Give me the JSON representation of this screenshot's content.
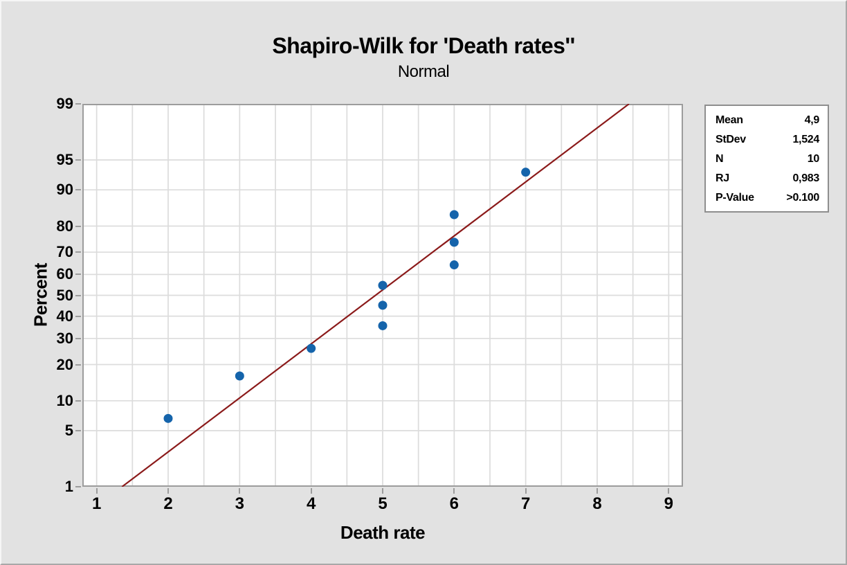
{
  "window": {
    "background": "#E2E2E2"
  },
  "chart_data": {
    "type": "scatter",
    "subtype": "normal-probability-plot",
    "title": "Shapiro-Wilk for 'Death rates''",
    "subtitle": "Normal",
    "xlabel": "Death rate",
    "ylabel": "Percent",
    "x_ticks": [
      1,
      2,
      3,
      4,
      5,
      6,
      7,
      8,
      9
    ],
    "x_gridline_step": 0.5,
    "x_axis_range": [
      0.8,
      9.2
    ],
    "y_ticks": [
      99,
      95,
      90,
      80,
      70,
      60,
      50,
      40,
      30,
      20,
      10,
      5,
      1
    ],
    "y_scale": "probit",
    "y_range_percent": [
      1,
      99
    ],
    "grid": true,
    "legend_position": "right",
    "points": [
      {
        "x": 2,
        "percent": 6.73
      },
      {
        "x": 3,
        "percent": 16.35
      },
      {
        "x": 4,
        "percent": 25.96
      },
      {
        "x": 5,
        "percent": 35.58
      },
      {
        "x": 5,
        "percent": 45.19
      },
      {
        "x": 5,
        "percent": 54.81
      },
      {
        "x": 6,
        "percent": 64.42
      },
      {
        "x": 6,
        "percent": 74.04
      },
      {
        "x": 6,
        "percent": 83.65
      },
      {
        "x": 7,
        "percent": 93.27
      }
    ],
    "fit_line": {
      "mean": 4.9,
      "stdev": 1.524,
      "from_percent": 1,
      "to_percent": 99
    },
    "colors": {
      "point": "#1564AB",
      "fit_line": "#8B1A1A",
      "grid_line": "#DCDCDC",
      "frame": "#9C9C9C",
      "plot_bg": "#FFFFFF",
      "canvas_bg": "#E2E2E2",
      "text": "#000000"
    }
  },
  "stats_box": {
    "rows": [
      {
        "label": "Mean",
        "value": "4,9"
      },
      {
        "label": "StDev",
        "value": "1,524"
      },
      {
        "label": "N",
        "value": "10"
      },
      {
        "label": "RJ",
        "value": "0,983"
      },
      {
        "label": "P-Value",
        "value": ">0.100"
      }
    ]
  }
}
